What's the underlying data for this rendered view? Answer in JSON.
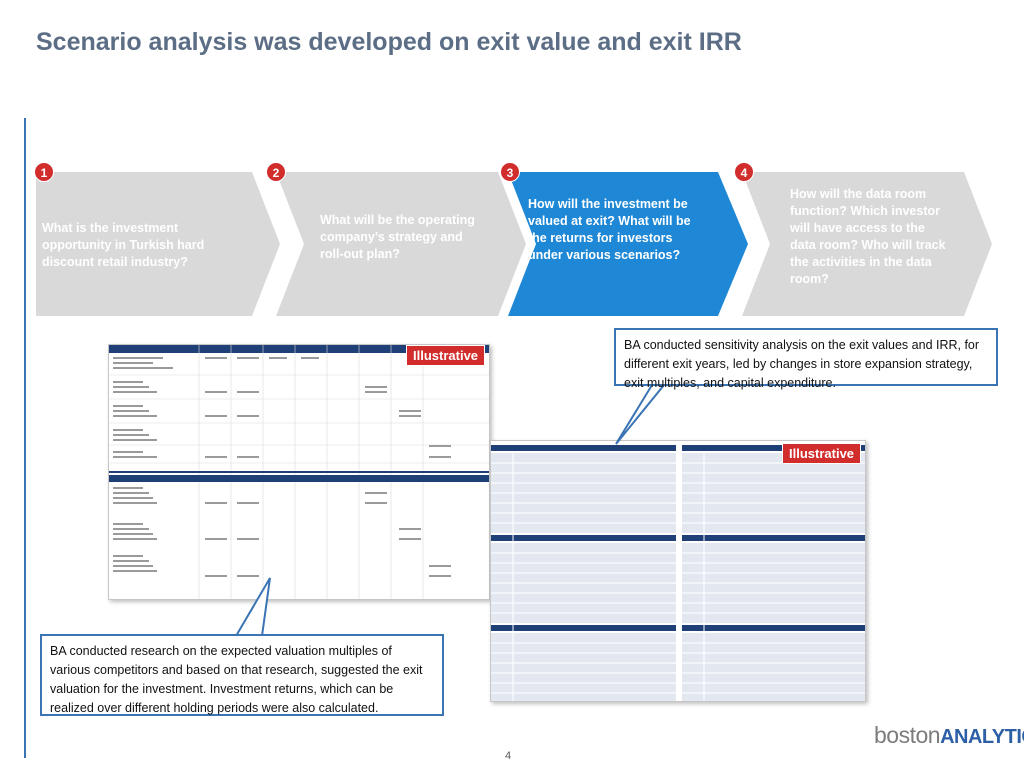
{
  "title": "Scenario analysis was developed on exit value and exit IRR",
  "steps": [
    {
      "number": "1",
      "text": "What is the investment opportunity in Turkish hard discount retail industry?"
    },
    {
      "number": "2",
      "text": "What will be the operating company’s strategy and roll-out plan?"
    },
    {
      "number": "3",
      "text": "How will the investment be valued at exit? What will be the returns for investors under various scenarios?"
    },
    {
      "number": "4",
      "text": "How will the data room function? Which investor will have access to the data room? Who will track the activities in the data room?"
    }
  ],
  "tags": {
    "illustrative_1": "Illustrative",
    "illustrative_2": "Illustrative"
  },
  "callouts": {
    "top_right": "BA conducted sensitivity analysis on the exit values and IRR, for different exit years, led by changes in store expansion strategy, exit multiples, and capital expenditure.",
    "bottom_left": "BA conducted research on the expected valuation multiples of various competitors and based on that research, suggested the exit valuation for the investment. Investment returns, which can be realized over different holding periods were also calculated."
  },
  "page_number": "4",
  "logo": {
    "part1": "boston",
    "part2": "ANALYTICS"
  },
  "colors": {
    "title": "#5c6e86",
    "chevron_grey": "#d9d9d9",
    "chevron_active": "#1e88d6",
    "badge": "#d22d2d",
    "accent_blue": "#3a74b4"
  }
}
